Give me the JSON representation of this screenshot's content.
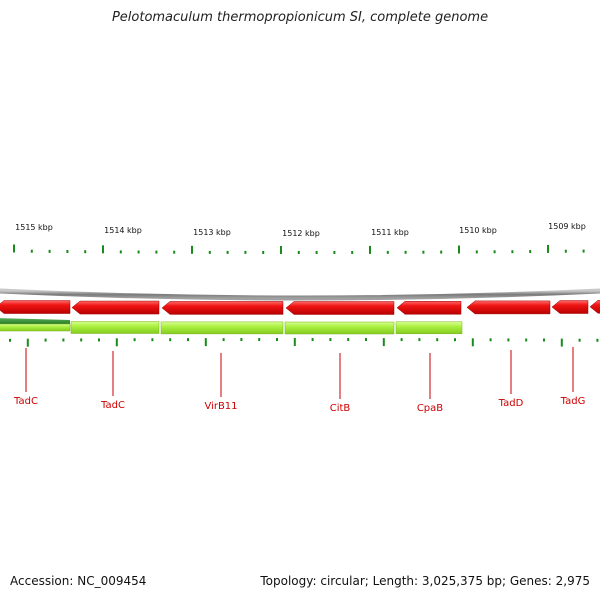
{
  "header": {
    "title": "Pelotomaculum thermopropionicum SI, complete genome"
  },
  "footer": {
    "accession": "Accession: NC_009454",
    "topology": "Topology: circular; Length: 3,025,375 bp; Genes: 2,975"
  },
  "colors": {
    "forward_strand": "#e81010",
    "reverse_strand": "#aaf040",
    "reverse_dark": "#2a8a2a",
    "backbone": "#8c8c8c",
    "tick": "#1a8a1a",
    "gene_label": "#cc0000"
  },
  "chart_data": {
    "type": "genome-map",
    "scale_labels": [
      "1515 kbp",
      "1514 kbp",
      "1513 kbp",
      "1512 kbp",
      "1511 kbp",
      "1510 kbp",
      "1509 kbp"
    ],
    "gene_labels": [
      "TadC",
      "TadC",
      "VirB11",
      "CitB",
      "CpaB",
      "TadD",
      "TadG"
    ]
  }
}
